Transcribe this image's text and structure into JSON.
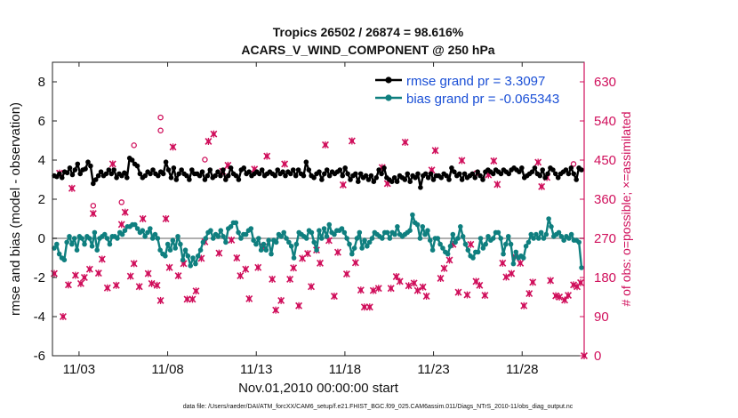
{
  "chart_data": {
    "type": "line",
    "title": [
      "Tropics 26502 / 26874 = 98.616%",
      "ACARS_V_WIND_COMPONENT @ 250 hPa"
    ],
    "xlabel": "Nov.01,2010 00:00:00 start",
    "ylabel": "rmse and bias (model - observation)",
    "y2label": "# of obs: o=possible; ×=assimilated",
    "footnote": "data file: /Users/raeder/DAI/ATM_forcXX/CAM6_setup/f.e21.FHIST_BGC.f09_025.CAM6assim.011/Diags_NTrS_2010-11/obs_diag_output.nc",
    "xlim": [
      1.5,
      31.5
    ],
    "ylim": [
      -6,
      9
    ],
    "y2lim": [
      0,
      675
    ],
    "xticks": [
      3,
      8,
      13,
      18,
      23,
      28
    ],
    "xtick_labels": [
      "11/03",
      "11/08",
      "11/13",
      "11/18",
      "11/23",
      "11/28"
    ],
    "yticks": [
      -6,
      -4,
      -2,
      0,
      2,
      4,
      6,
      8
    ],
    "y2ticks": [
      0,
      90,
      180,
      270,
      360,
      450,
      540,
      630
    ],
    "legend": [
      "rmse grand pr = 3.3097",
      "bias grand pr = -0.065343"
    ],
    "colors": {
      "rmse": "#000000",
      "bias": "#0f7f7f",
      "obs": "#d0105c",
      "zero": "#b0b0b0",
      "legend_text": "#1a4fd6"
    },
    "rmse": [
      3.2,
      3.15,
      3.3,
      3.1,
      3.4,
      3.35,
      3.6,
      3.25,
      3.5,
      3.8,
      3.3,
      3.5,
      3.55,
      3.9,
      3.7,
      2.8,
      3.0,
      3.2,
      3.4,
      3.2,
      3.3,
      3.5,
      3.3,
      3.5,
      3.1,
      3.3,
      3.2,
      3.35,
      3.1,
      4.1,
      4.0,
      3.8,
      3.7,
      3.3,
      3.1,
      3.2,
      3.4,
      3.3,
      3.5,
      3.3,
      3.2,
      3.4,
      3.3,
      3.9,
      3.5,
      3.1,
      3.6,
      3.0,
      3.3,
      3.5,
      3.3,
      3.2,
      3.0,
      3.5,
      3.3,
      3.3,
      3.2,
      3.4,
      3.0,
      3.2,
      3.5,
      3.1,
      3.2,
      3.4,
      3.2,
      3.5,
      3.0,
      3.2,
      3.6,
      3.3,
      3.2,
      3.0,
      3.5,
      3.6,
      3.3,
      3.4,
      3.2,
      3.3,
      3.4,
      3.3,
      3.5,
      3.2,
      3.3,
      3.4,
      3.3,
      3.2,
      3.5,
      3.3,
      3.4,
      3.2,
      3.4,
      3.3,
      3.5,
      3.2,
      3.5,
      3.3,
      3.2,
      3.9,
      3.5,
      3.2,
      3.1,
      3.3,
      3.4,
      3.0,
      3.3,
      3.5,
      3.2,
      3.4,
      3.3,
      3.4,
      3.5,
      3.2,
      3.6,
      3.3,
      3.0,
      3.2,
      3.3,
      2.9,
      3.3,
      3.1,
      3.2,
      3.0,
      3.2,
      2.9,
      3.1,
      3.5,
      3.3,
      3.6,
      3.1,
      3.0,
      2.9,
      3.1,
      2.9,
      3.2,
      3.1,
      3.0,
      3.3,
      2.9,
      3.2,
      3.1,
      3.3,
      2.6,
      3.2,
      3.3,
      3.1,
      3.3,
      3.0,
      3.2,
      3.2,
      3.1,
      3.3,
      3.2,
      3.0,
      3.6,
      3.4,
      3.2,
      3.3,
      3.0,
      3.3,
      3.1,
      3.2,
      3.3,
      3.1,
      3.4,
      3.2,
      3.0,
      3.4,
      3.5,
      3.4,
      3.3,
      3.5,
      3.4,
      3.3,
      3.5,
      3.4,
      3.3,
      3.5,
      3.6,
      3.5,
      3.4,
      3.6,
      3.1,
      3.2,
      3.3,
      3.4,
      3.6,
      3.3,
      3.2,
      3.5,
      3.1,
      3.3,
      3.6,
      3.5,
      3.3,
      3.1,
      3.3,
      3.4,
      3.5,
      3.3,
      3.6,
      3.3,
      3.0,
      3.6,
      3.5
    ],
    "bias": [
      -0.5,
      -0.3,
      -0.8,
      -1.0,
      -1.1,
      -0.2,
      0.1,
      -0.3,
      0.0,
      -0.6,
      0.1,
      0.0,
      -0.3,
      0.1,
      0.0,
      -0.4,
      0.3,
      -0.6,
      0.0,
      0.1,
      0.2,
      0.0,
      -0.3,
      0.1,
      0.1,
      0.0,
      0.3,
      0.2,
      0.4,
      0.6,
      0.6,
      0.7,
      0.7,
      0.5,
      0.3,
      0.4,
      0.1,
      0.3,
      0.5,
      0.0,
      0.2,
      0.0,
      -0.6,
      -0.8,
      -0.9,
      -0.3,
      -0.6,
      -0.1,
      -0.5,
      0.1,
      -0.3,
      -1.1,
      -0.6,
      -0.9,
      -1.4,
      -1.0,
      -1.3,
      -0.9,
      -0.6,
      -0.2,
      0.0,
      0.3,
      0.4,
      0.0,
      0.2,
      0.1,
      0.4,
      0.1,
      -0.2,
      0.5,
      0.6,
      0.8,
      0.8,
      0.3,
      0.0,
      0.2,
      0.2,
      0.4,
      0.5,
      -0.1,
      -0.3,
      0.0,
      -0.6,
      -0.3,
      -0.6,
      -0.1,
      -0.8,
      -0.1,
      -0.2,
      0.2,
      0.1,
      0.3,
      0.0,
      -0.2,
      -0.4,
      -1.0,
      -0.3,
      0.3,
      0.2,
      0.1,
      0.0,
      0.4,
      0.3,
      -0.2,
      -0.6,
      0.4,
      0.0,
      0.5,
      0.1,
      0.7,
      0.3,
      0.2,
      0.4,
      0.4,
      0.5,
      0.3,
      0.0,
      -0.3,
      -0.8,
      -0.5,
      0.0,
      0.3,
      -0.5,
      -0.1,
      -0.4,
      -0.2,
      0.0,
      0.3,
      0.2,
      0.1,
      0.0,
      0.3,
      0.3,
      0.0,
      0.3,
      0.2,
      0.6,
      0.2,
      0.1,
      0.2,
      0.3,
      0.4,
      1.2,
      0.8,
      0.7,
      0.0,
      0.6,
      0.2,
      0.4,
      -0.1,
      -0.6,
      0.0,
      0.0,
      -0.3,
      -0.5,
      -0.7,
      -0.8,
      -0.4,
      0.2,
      -0.2,
      0.0,
      0.6,
      0.1,
      -0.3,
      -0.6,
      -0.9,
      -1.0,
      -0.7,
      -0.7,
      0.0,
      -0.5,
      -0.3,
      0.1,
      -0.1,
      0.0,
      0.3,
      0.3,
      0.0,
      -0.8,
      -0.3,
      0.1,
      -0.3,
      -1.3,
      -0.7,
      -1.0,
      -0.9,
      -1.0,
      -0.4,
      -0.2,
      0.2,
      0.0,
      0.2,
      0.0,
      0.3,
      0.0,
      0.2,
      1.0,
      0.6,
      0.1,
      0.2,
      0.3,
      0.1,
      -0.1,
      0.1,
      0.0,
      0.2,
      -0.1,
      -0.1,
      -0.2,
      -1.5
    ],
    "obs_assimilated": [
      [
        1.6,
        189
      ],
      [
        1.9,
        420
      ],
      [
        2.1,
        90
      ],
      [
        2.4,
        163
      ],
      [
        2.6,
        385
      ],
      [
        2.8,
        185
      ],
      [
        3.1,
        166
      ],
      [
        3.3,
        180
      ],
      [
        3.6,
        199
      ],
      [
        3.8,
        327
      ],
      [
        4.1,
        190
      ],
      [
        4.3,
        222
      ],
      [
        4.6,
        156
      ],
      [
        4.9,
        441
      ],
      [
        5.1,
        162
      ],
      [
        5.4,
        302
      ],
      [
        5.6,
        330
      ],
      [
        5.9,
        183
      ],
      [
        6.1,
        212
      ],
      [
        6.4,
        159
      ],
      [
        6.6,
        315
      ],
      [
        6.9,
        189
      ],
      [
        7.1,
        166
      ],
      [
        7.4,
        162
      ],
      [
        7.6,
        127
      ],
      [
        7.9,
        315
      ],
      [
        8.1,
        203
      ],
      [
        8.3,
        480
      ],
      [
        8.6,
        184
      ],
      [
        8.9,
        212
      ],
      [
        9.1,
        130
      ],
      [
        9.4,
        130
      ],
      [
        9.6,
        149
      ],
      [
        9.9,
        224
      ],
      [
        10.1,
        262
      ],
      [
        10.3,
        493
      ],
      [
        10.6,
        510
      ],
      [
        10.9,
        236
      ],
      [
        11.1,
        424
      ],
      [
        11.4,
        438
      ],
      [
        11.6,
        266
      ],
      [
        11.9,
        225
      ],
      [
        12.1,
        184
      ],
      [
        12.4,
        199
      ],
      [
        12.6,
        131
      ],
      [
        12.9,
        429
      ],
      [
        13.1,
        203
      ],
      [
        13.4,
        251
      ],
      [
        13.6,
        459
      ],
      [
        13.9,
        176
      ],
      [
        14.1,
        105
      ],
      [
        14.4,
        127
      ],
      [
        14.6,
        441
      ],
      [
        14.9,
        176
      ],
      [
        15.1,
        202
      ],
      [
        15.4,
        115
      ],
      [
        15.6,
        224
      ],
      [
        15.9,
        235
      ],
      [
        16.1,
        159
      ],
      [
        16.4,
        243
      ],
      [
        16.6,
        213
      ],
      [
        16.9,
        485
      ],
      [
        17.1,
        265
      ],
      [
        17.4,
        137
      ],
      [
        17.6,
        238
      ],
      [
        17.9,
        393
      ],
      [
        18.1,
        188
      ],
      [
        18.4,
        494
      ],
      [
        18.6,
        214
      ],
      [
        18.9,
        151
      ],
      [
        19.1,
        112
      ],
      [
        19.4,
        112
      ],
      [
        19.6,
        150
      ],
      [
        19.9,
        155
      ],
      [
        20.1,
        433
      ],
      [
        20.4,
        396
      ],
      [
        20.6,
        155
      ],
      [
        20.9,
        182
      ],
      [
        21.1,
        171
      ],
      [
        21.4,
        491
      ],
      [
        21.6,
        161
      ],
      [
        21.9,
        167
      ],
      [
        22.1,
        150
      ],
      [
        22.4,
        158
      ],
      [
        22.6,
        137
      ],
      [
        22.9,
        427
      ],
      [
        23.1,
        472
      ],
      [
        23.4,
        178
      ],
      [
        23.6,
        201
      ],
      [
        23.9,
        220
      ],
      [
        24.1,
        256
      ],
      [
        24.4,
        146
      ],
      [
        24.6,
        449
      ],
      [
        24.9,
        140
      ],
      [
        25.1,
        256
      ],
      [
        25.4,
        171
      ],
      [
        25.6,
        162
      ],
      [
        25.9,
        139
      ],
      [
        26.1,
        416
      ],
      [
        26.4,
        448
      ],
      [
        26.6,
        394
      ],
      [
        26.9,
        213
      ],
      [
        27.1,
        181
      ],
      [
        27.4,
        189
      ],
      [
        27.6,
        228
      ],
      [
        27.9,
        213
      ],
      [
        28.1,
        115
      ],
      [
        28.4,
        143
      ],
      [
        28.6,
        169
      ],
      [
        28.9,
        445
      ],
      [
        29.1,
        389
      ],
      [
        29.4,
        410
      ],
      [
        29.6,
        173
      ],
      [
        29.9,
        138
      ],
      [
        30.1,
        135
      ],
      [
        30.4,
        128
      ],
      [
        30.6,
        139
      ],
      [
        30.9,
        163
      ],
      [
        31.1,
        159
      ],
      [
        31.3,
        168
      ],
      [
        31.5,
        0
      ]
    ],
    "obs_possible": [
      [
        7.6,
        548
      ],
      [
        10.1,
        451
      ],
      [
        3.8,
        345
      ],
      [
        7.6,
        518
      ],
      [
        25.4,
        420
      ],
      [
        30.9,
        441
      ],
      [
        6.1,
        484
      ],
      [
        5.4,
        353
      ]
    ]
  }
}
